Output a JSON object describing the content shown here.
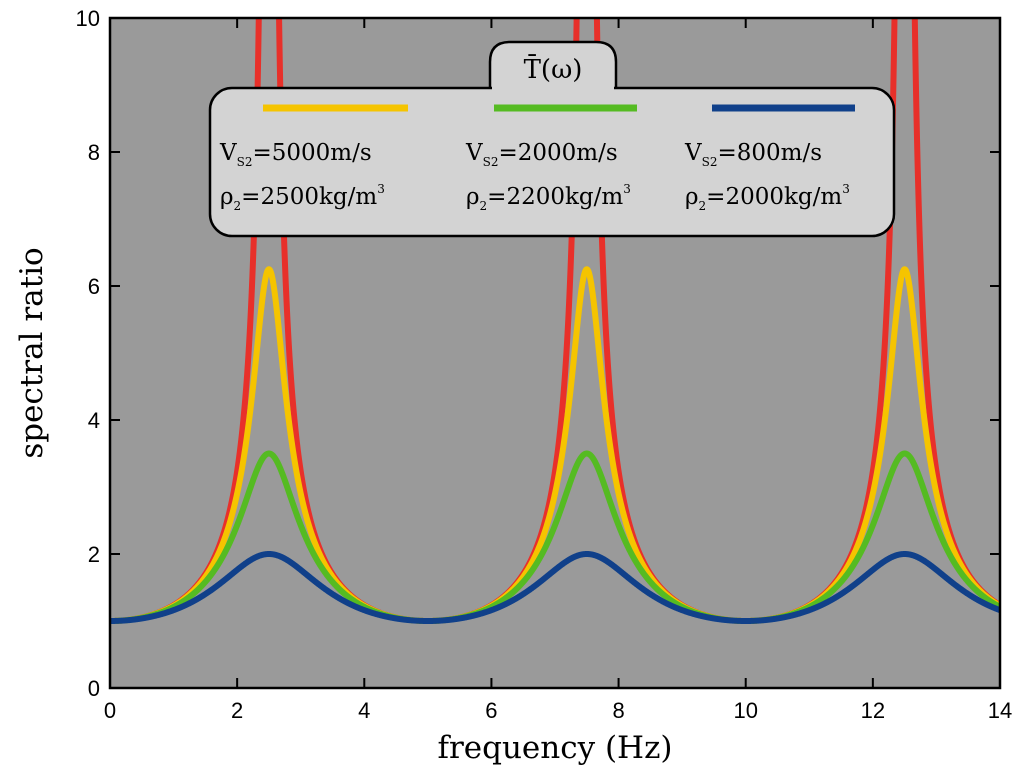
{
  "chart_data": {
    "type": "line",
    "title": "",
    "xlabel": "frequency (Hz)",
    "ylabel": "spectral ratio",
    "xlim": [
      0,
      14
    ],
    "ylim": [
      0,
      10
    ],
    "xticks": [
      0,
      2,
      4,
      6,
      8,
      10,
      12,
      14
    ],
    "yticks": [
      0,
      2,
      4,
      6,
      8,
      10
    ],
    "grid": false,
    "background_color": "#9a9a9a",
    "resonance_frequencies": [
      2.5,
      7.5,
      12.5
    ],
    "legend": {
      "title": "T̄(ω)",
      "placement": "top",
      "entries": [
        {
          "velocity": "V",
          "velocity_sub": "S2",
          "velocity_value": "=5000m/s",
          "density": "ρ",
          "density_sub": "2",
          "density_value": "=2500kg/m",
          "density_sup": "3"
        },
        {
          "velocity": "V",
          "velocity_sub": "S2",
          "velocity_value": "=2000m/s",
          "density": "ρ",
          "density_sub": "2",
          "density_value": "=2200kg/m",
          "density_sup": "3"
        },
        {
          "velocity": "V",
          "velocity_sub": "S2",
          "velocity_value": "=800m/s",
          "density": "ρ",
          "density_sub": "2",
          "density_value": "=2000kg/m",
          "density_sup": "3"
        }
      ]
    },
    "series": [
      {
        "color": "#e8302a",
        "peak": "infinite",
        "min": 1.0
      },
      {
        "color": "#f5c400",
        "peak": 6.25,
        "min": 1.0
      },
      {
        "color": "#55bb22",
        "peak": 3.5,
        "min": 1.0
      },
      {
        "color": "#10408a",
        "peak": 2.0,
        "min": 1.0
      }
    ]
  }
}
